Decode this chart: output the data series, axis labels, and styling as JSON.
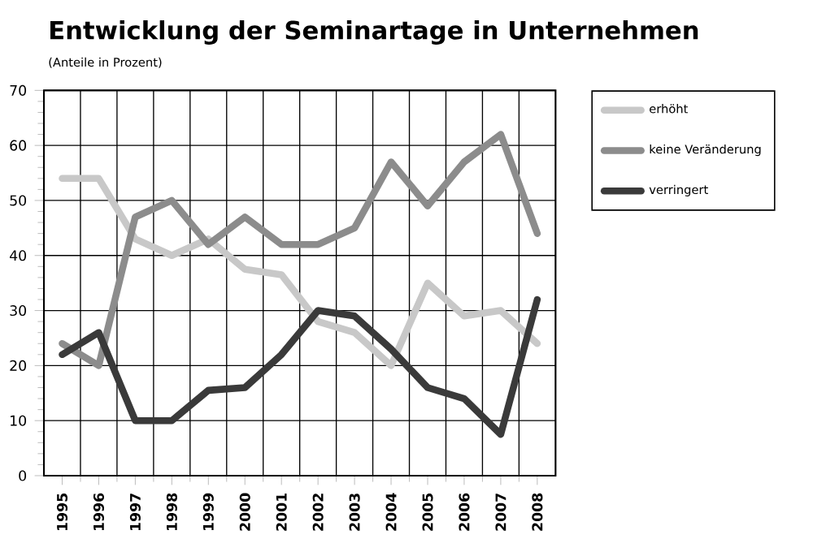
{
  "chart_data": {
    "type": "line",
    "title": "Entwicklung der Seminartage in Unternehmen",
    "subtitle": "(Anteile in Prozent)",
    "categories": [
      "1995",
      "1996",
      "1997",
      "1998",
      "1999",
      "2000",
      "2001",
      "2002",
      "2003",
      "2004",
      "2005",
      "2006",
      "2007",
      "2008"
    ],
    "series": [
      {
        "name": "erhöht",
        "color": "#c8c8c8",
        "values": [
          54,
          54,
          43,
          40,
          43,
          37.5,
          36.5,
          28,
          26,
          20,
          35,
          29,
          30,
          24
        ]
      },
      {
        "name": "keine Veränderung",
        "color": "#8c8c8c",
        "values": [
          24,
          20,
          47,
          50,
          42,
          47,
          42,
          42,
          45,
          57,
          49,
          57,
          62,
          44
        ]
      },
      {
        "name": "verringert",
        "color": "#3a3a3a",
        "values": [
          22,
          26,
          10,
          10,
          15.5,
          16,
          22,
          30,
          29,
          23,
          16,
          14,
          7.5,
          32
        ]
      }
    ],
    "ylim": [
      0,
      70
    ],
    "yticks": [
      0,
      10,
      20,
      30,
      40,
      50,
      60,
      70
    ],
    "grid": true,
    "legend": "top right",
    "marker": "none",
    "line_style": "solid"
  }
}
